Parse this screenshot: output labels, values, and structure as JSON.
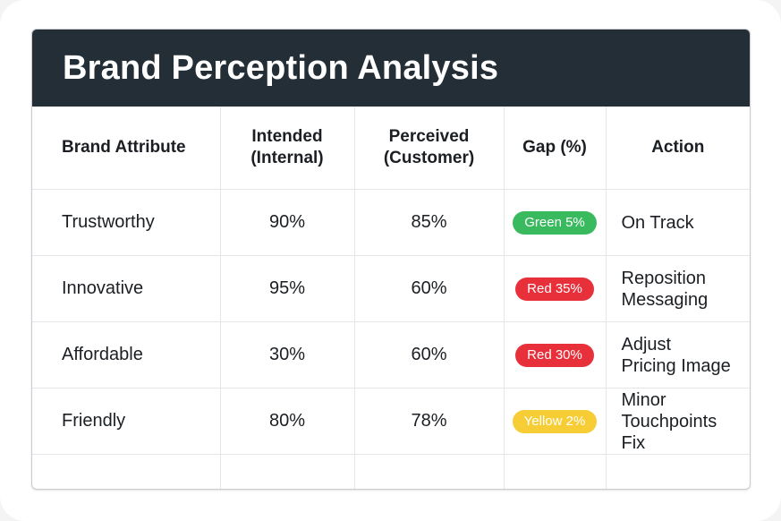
{
  "title": "Brand Perception Analysis",
  "columns": {
    "attribute": "Brand Attribute",
    "intended": [
      "Intended",
      "(Internal)"
    ],
    "perceived": [
      "Perceived",
      "(Customer)"
    ],
    "gap": "Gap (%)",
    "action": "Action"
  },
  "rows": [
    {
      "attribute": "Trustworthy",
      "intended": "90%",
      "perceived": "85%",
      "gap": "Green 5%",
      "gap_color": "#3aba5f",
      "action": [
        "On Track"
      ]
    },
    {
      "attribute": "Innovative",
      "intended": "95%",
      "perceived": "60%",
      "gap": "Red 35%",
      "gap_color": "#e8303a",
      "action": [
        "Reposition",
        "Messaging"
      ]
    },
    {
      "attribute": "Affordable",
      "intended": "30%",
      "perceived": "60%",
      "gap": "Red 30%",
      "gap_color": "#e8303a",
      "action": [
        "Adjust",
        "Pricing Image"
      ]
    },
    {
      "attribute": "Friendly",
      "intended": "80%",
      "perceived": "78%",
      "gap": "Yellow 2%",
      "gap_color": "#f7cd35",
      "action": [
        "Minor",
        "Touchpoints",
        "Fix"
      ]
    }
  ],
  "colors": {
    "header_bg": "#242e36",
    "green": "#3aba5f",
    "red": "#e8303a",
    "yellow": "#f7cd35"
  }
}
